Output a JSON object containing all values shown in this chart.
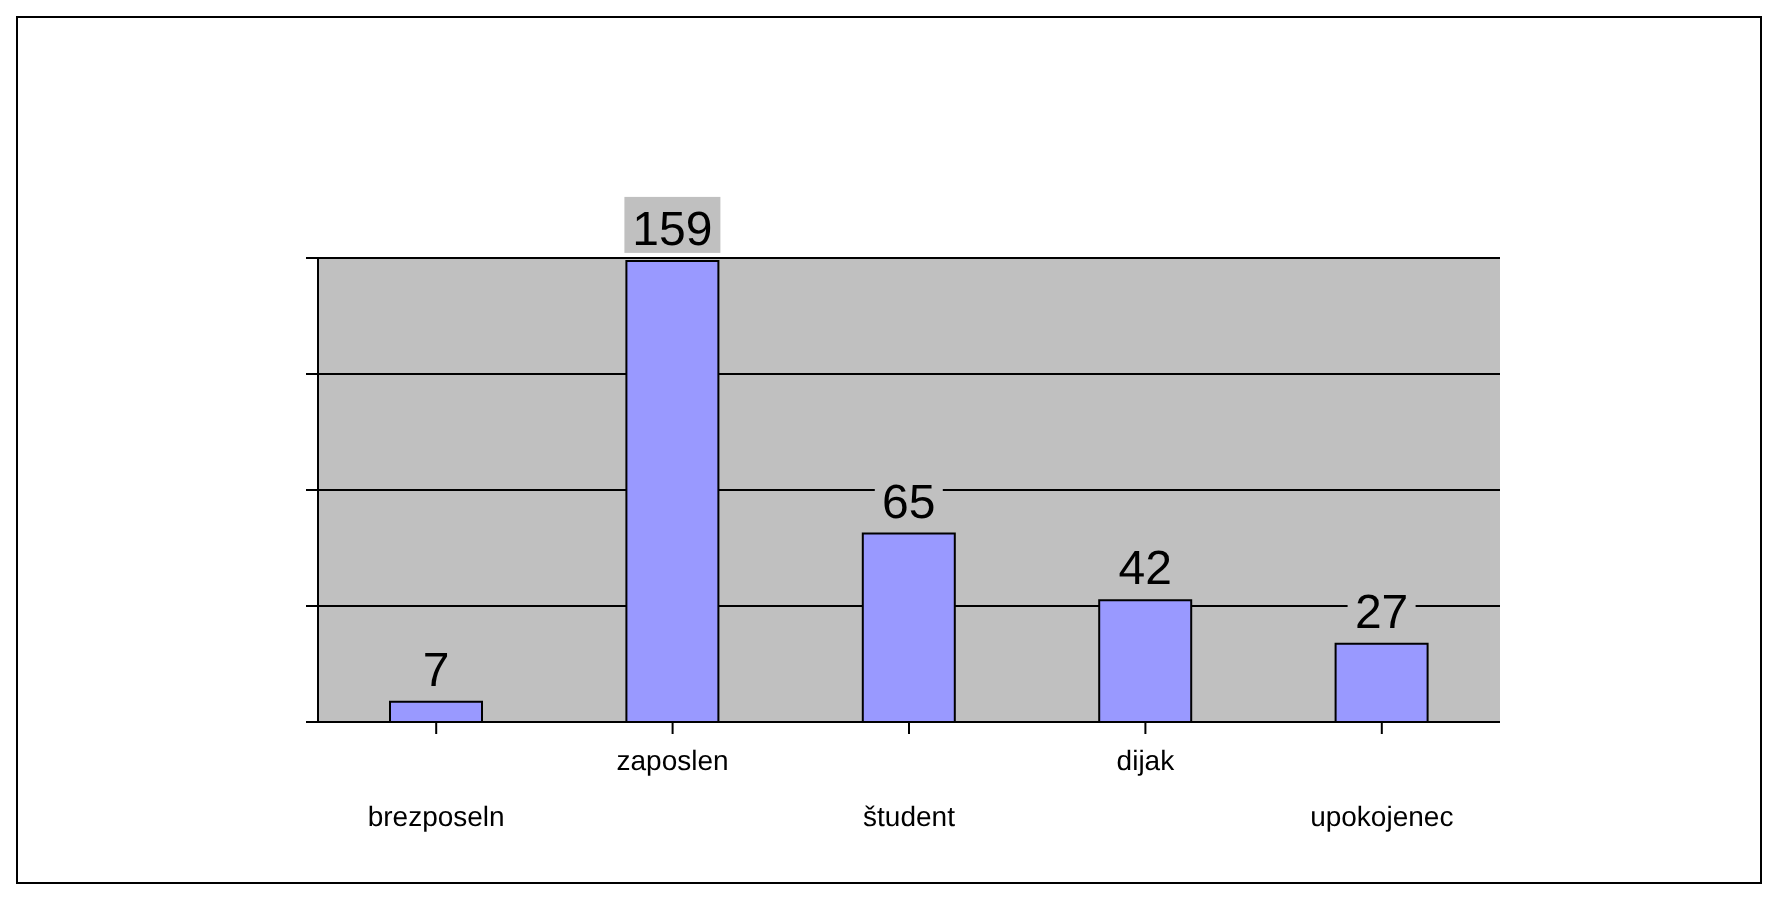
{
  "chart_data": {
    "type": "bar",
    "categories": [
      "brezposeln",
      "zaposlen",
      "študent",
      "dijak",
      "upokojenec"
    ],
    "values": [
      7,
      159,
      65,
      42,
      27
    ],
    "color": "#9999ff",
    "data_labels": true,
    "grid": "y",
    "tick_labels": "x"
  }
}
